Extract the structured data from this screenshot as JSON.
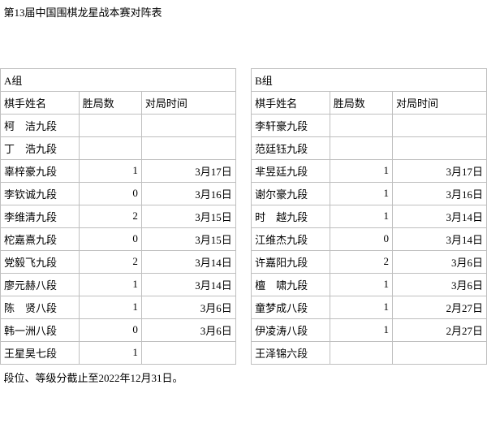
{
  "title": "第13届中国围棋龙星战本赛对阵表",
  "footer": "段位、等级分截止至2022年12月31日。",
  "groupA": {
    "label": "A组",
    "headers": {
      "name": "棋手姓名",
      "wins": "胜局数",
      "date": "对局时间"
    },
    "rows": [
      {
        "name": "柯　洁九段",
        "wins": "",
        "date": ""
      },
      {
        "name": "丁　浩九段",
        "wins": "",
        "date": ""
      },
      {
        "name": "辜梓豪九段",
        "wins": "1",
        "date": "3月17日"
      },
      {
        "name": "李钦诚九段",
        "wins": "0",
        "date": "3月16日"
      },
      {
        "name": "李维清九段",
        "wins": "2",
        "date": "3月15日"
      },
      {
        "name": "柁嘉熹九段",
        "wins": "0",
        "date": "3月15日"
      },
      {
        "name": "党毅飞九段",
        "wins": "2",
        "date": "3月14日"
      },
      {
        "name": "廖元赫八段",
        "wins": "1",
        "date": "3月14日"
      },
      {
        "name": "陈　贤八段",
        "wins": "1",
        "date": "3月6日"
      },
      {
        "name": "韩一洲八段",
        "wins": "0",
        "date": "3月6日"
      },
      {
        "name": "王星昊七段",
        "wins": "1",
        "date": ""
      }
    ]
  },
  "groupB": {
    "label": "B组",
    "headers": {
      "name": "棋手姓名",
      "wins": "胜局数",
      "date": "对局时间"
    },
    "rows": [
      {
        "name": "李轩豪九段",
        "wins": "",
        "date": ""
      },
      {
        "name": "范廷钰九段",
        "wins": "",
        "date": ""
      },
      {
        "name": "芈昱廷九段",
        "wins": "1",
        "date": "3月17日"
      },
      {
        "name": "谢尔豪九段",
        "wins": "1",
        "date": "3月16日"
      },
      {
        "name": "时　越九段",
        "wins": "1",
        "date": "3月14日"
      },
      {
        "name": "江维杰九段",
        "wins": "0",
        "date": "3月14日"
      },
      {
        "name": "许嘉阳九段",
        "wins": "2",
        "date": "3月6日"
      },
      {
        "name": "檀　啸九段",
        "wins": "1",
        "date": "3月6日"
      },
      {
        "name": "童梦成八段",
        "wins": "1",
        "date": "2月27日"
      },
      {
        "name": "伊凌涛八段",
        "wins": "1",
        "date": "2月27日"
      },
      {
        "name": "王泽锦六段",
        "wins": "",
        "date": ""
      }
    ]
  }
}
